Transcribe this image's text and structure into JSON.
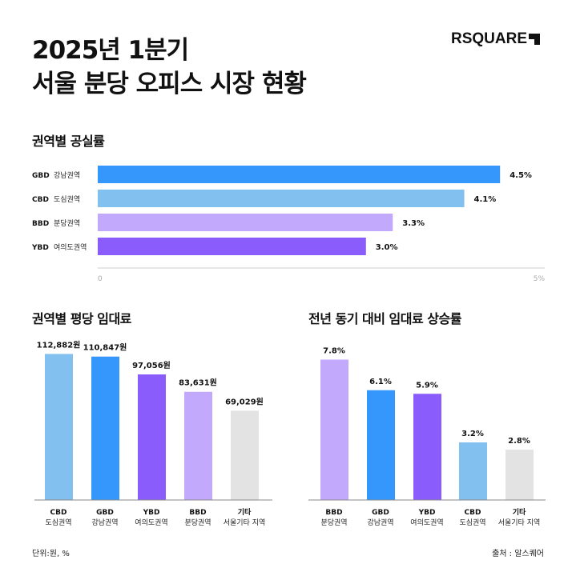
{
  "header": {
    "title_line1": "2025년 1분기",
    "title_line2": "서울 분당 오피스 시장 현황",
    "logo": "RSQUARE"
  },
  "chart_data": [
    {
      "type": "bar",
      "orientation": "horizontal",
      "title": "권역별 공실률",
      "categories": [
        {
          "code": "GBD",
          "name": "강남권역"
        },
        {
          "code": "CBD",
          "name": "도심권역"
        },
        {
          "code": "BBD",
          "name": "분당권역"
        },
        {
          "code": "YBD",
          "name": "여의도권역"
        }
      ],
      "values": [
        4.5,
        4.1,
        3.3,
        3.0
      ],
      "labels": [
        "4.5%",
        "4.1%",
        "3.3%",
        "3.0%"
      ],
      "colors": [
        "#3596fb",
        "#82c0ef",
        "#c3a9fb",
        "#8a5cfb"
      ],
      "xlim": [
        0,
        5
      ],
      "ticks": [
        "0",
        "5%"
      ],
      "grid": false
    },
    {
      "type": "bar",
      "title": "권역별 평당 임대료",
      "categories": [
        {
          "code": "CBD",
          "name": "도심권역"
        },
        {
          "code": "GBD",
          "name": "강남권역"
        },
        {
          "code": "YBD",
          "name": "여의도권역"
        },
        {
          "code": "BBD",
          "name": "분당권역"
        },
        {
          "code": "기타",
          "name": "서울기타 지역"
        }
      ],
      "values": [
        112882,
        110847,
        97056,
        83631,
        69029
      ],
      "labels": [
        "112,882원",
        "110,847원",
        "97,056원",
        "83,631원",
        "69,029원"
      ],
      "colors": [
        "#82c0ef",
        "#3596fb",
        "#8a5cfb",
        "#c3a9fb",
        "#e3e3e3"
      ],
      "ylim": [
        0,
        115000
      ],
      "grid": false
    },
    {
      "type": "bar",
      "title": "전년 동기 대비 임대료 상승률",
      "categories": [
        {
          "code": "BBD",
          "name": "분당권역"
        },
        {
          "code": "GBD",
          "name": "강남권역"
        },
        {
          "code": "YBD",
          "name": "여의도권역"
        },
        {
          "code": "CBD",
          "name": "도심권역"
        },
        {
          "code": "기타",
          "name": "서울기타 지역"
        }
      ],
      "values": [
        7.8,
        6.1,
        5.9,
        3.2,
        2.8
      ],
      "labels": [
        "7.8%",
        "6.1%",
        "5.9%",
        "3.2%",
        "2.8%"
      ],
      "colors": [
        "#c3a9fb",
        "#3596fb",
        "#8a5cfb",
        "#82c0ef",
        "#e3e3e3"
      ],
      "ylim": [
        0,
        8
      ],
      "grid": false
    }
  ],
  "footer": {
    "unit": "단위:원, %",
    "source": "출처 : 알스퀘어"
  }
}
